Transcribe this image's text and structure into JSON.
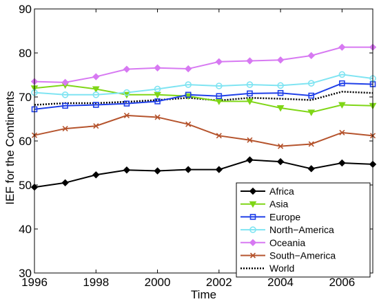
{
  "chart_data": {
    "type": "line",
    "xlabel": "Time",
    "ylabel": "IEF for the Continents",
    "xlim": [
      1996,
      2007
    ],
    "ylim": [
      30,
      90
    ],
    "xticks": [
      1996,
      1998,
      2000,
      2002,
      2004,
      2006
    ],
    "yticks": [
      30,
      40,
      50,
      60,
      70,
      80,
      90
    ],
    "grid": false,
    "legend_position": "bottom-right",
    "x": [
      1996,
      1997,
      1998,
      1999,
      2000,
      2001,
      2002,
      2003,
      2004,
      2005,
      2006,
      2007
    ],
    "series": [
      {
        "name": "Africa",
        "color": "#000000",
        "marker": "diamond",
        "dashed": false,
        "values": [
          49.5,
          50.5,
          52.3,
          53.4,
          53.2,
          53.5,
          53.5,
          55.7,
          55.3,
          53.7,
          55.0,
          54.7
        ]
      },
      {
        "name": "Asia",
        "color": "#7fd616",
        "marker": "triangle-down",
        "dashed": false,
        "values": [
          72.0,
          72.7,
          71.8,
          70.5,
          70.5,
          70.2,
          69.0,
          69.0,
          67.5,
          66.5,
          68.2,
          68.0
        ]
      },
      {
        "name": "Europe",
        "color": "#1f3fe8",
        "marker": "square",
        "dashed": false,
        "values": [
          67.2,
          68.0,
          68.2,
          68.5,
          69.0,
          70.5,
          70.2,
          70.8,
          70.9,
          70.3,
          73.1,
          72.9
        ]
      },
      {
        "name": "North−America",
        "color": "#7fe4f2",
        "marker": "circle",
        "dashed": false,
        "values": [
          71.0,
          70.5,
          70.5,
          71.0,
          71.8,
          72.8,
          72.5,
          72.8,
          72.6,
          73.1,
          75.1,
          74.2
        ]
      },
      {
        "name": "Oceania",
        "color": "#d779f2",
        "marker": "diamond",
        "dashed": false,
        "values": [
          73.5,
          73.3,
          74.6,
          76.3,
          76.6,
          76.4,
          78.0,
          78.2,
          78.4,
          79.4,
          81.3,
          81.3
        ]
      },
      {
        "name": "South−America",
        "color": "#b5532c",
        "marker": "x",
        "dashed": false,
        "values": [
          61.3,
          62.8,
          63.4,
          65.8,
          65.4,
          63.8,
          61.2,
          60.2,
          58.8,
          59.3,
          61.9,
          61.2
        ]
      },
      {
        "name": "World",
        "color": "#000000",
        "marker": "none",
        "dashed": true,
        "values": [
          68.2,
          68.6,
          68.6,
          68.9,
          69.3,
          69.8,
          69.2,
          69.8,
          69.6,
          69.3,
          71.2,
          70.9
        ]
      }
    ]
  }
}
